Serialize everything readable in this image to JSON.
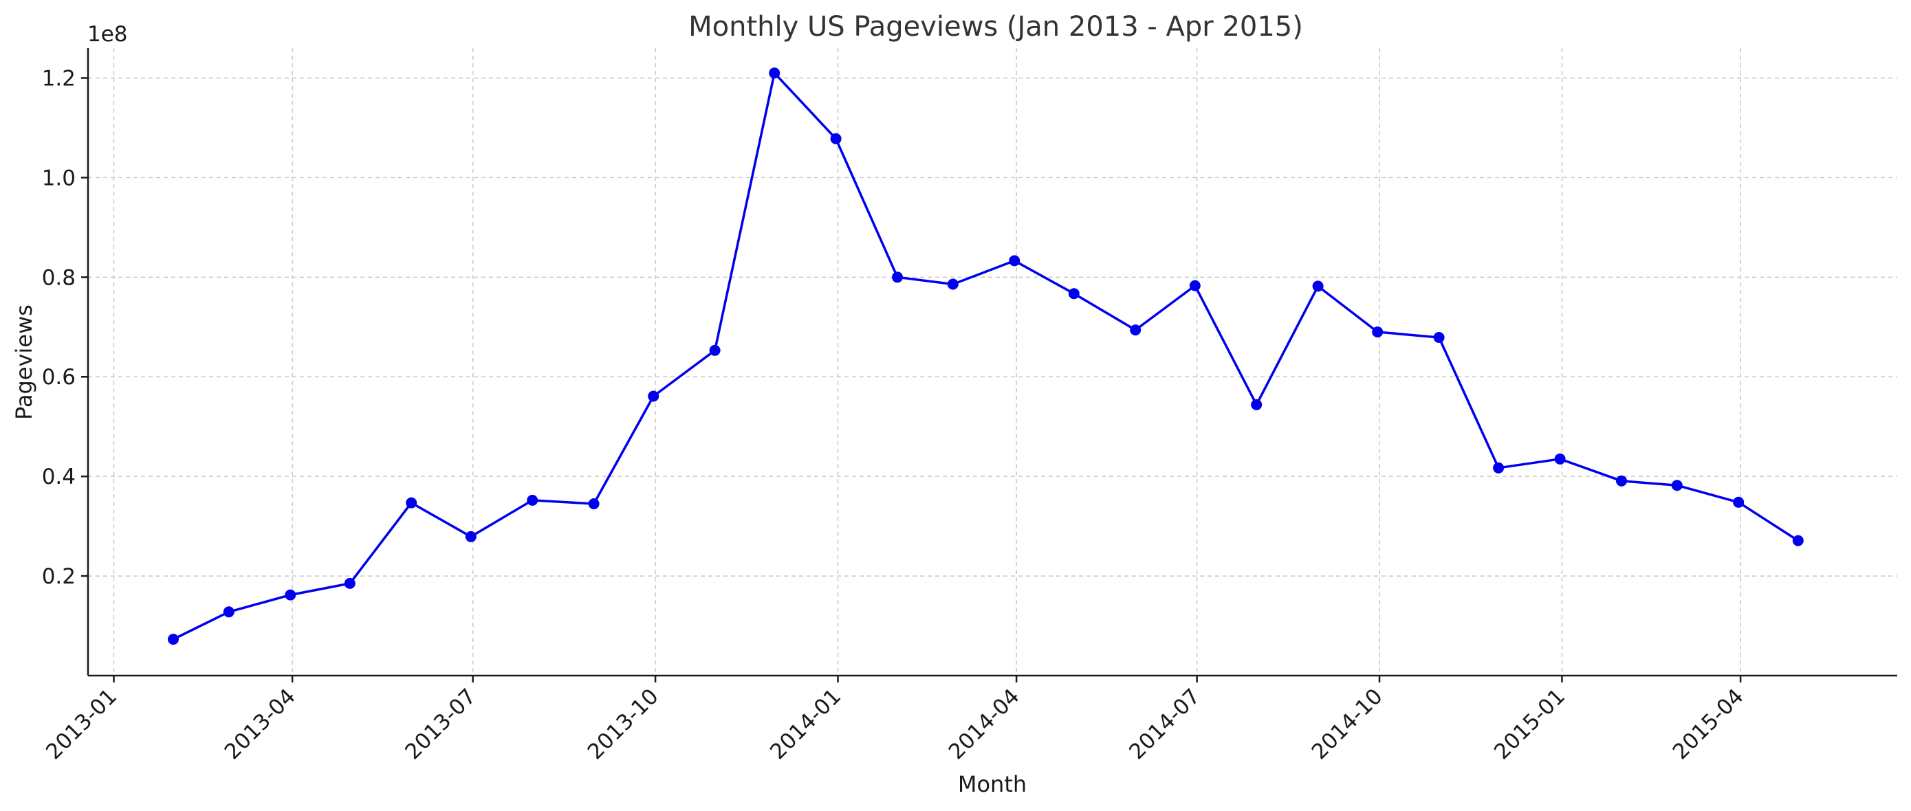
{
  "chart_data": {
    "type": "line",
    "title": "Monthly US Pageviews (Jan 2013 - Apr 2015)",
    "xlabel": "Month",
    "ylabel": "Pageviews",
    "y_offset_label": "1e8",
    "y_scale": 100000000,
    "x_range": [
      "2012-12-19",
      "2015-06-19"
    ],
    "y_range": [
      0,
      126000000
    ],
    "y_ticks": [
      {
        "value": 20000000,
        "label": "0.2"
      },
      {
        "value": 40000000,
        "label": "0.4"
      },
      {
        "value": 60000000,
        "label": "0.6"
      },
      {
        "value": 80000000,
        "label": "0.8"
      },
      {
        "value": 100000000,
        "label": "1.0"
      },
      {
        "value": 120000000,
        "label": "1.2"
      }
    ],
    "x_ticks": [
      {
        "value": "2013-01-01",
        "label": "2013-01"
      },
      {
        "value": "2013-04-01",
        "label": "2013-04"
      },
      {
        "value": "2013-07-01",
        "label": "2013-07"
      },
      {
        "value": "2013-10-01",
        "label": "2013-10"
      },
      {
        "value": "2014-01-01",
        "label": "2014-01"
      },
      {
        "value": "2014-04-01",
        "label": "2014-04"
      },
      {
        "value": "2014-07-01",
        "label": "2014-07"
      },
      {
        "value": "2014-10-01",
        "label": "2014-10"
      },
      {
        "value": "2015-01-01",
        "label": "2015-01"
      },
      {
        "value": "2015-04-01",
        "label": "2015-04"
      }
    ],
    "grid": true,
    "legend": "none",
    "series": [
      {
        "color": "#0000ee",
        "marker": "circle",
        "x": [
          "2013-01-31",
          "2013-02-28",
          "2013-03-31",
          "2013-04-30",
          "2013-05-31",
          "2013-06-30",
          "2013-07-31",
          "2013-08-31",
          "2013-09-30",
          "2013-10-31",
          "2013-11-30",
          "2013-12-31",
          "2014-01-31",
          "2014-02-28",
          "2014-03-31",
          "2014-04-30",
          "2014-05-31",
          "2014-06-30",
          "2014-07-31",
          "2014-08-31",
          "2014-09-30",
          "2014-10-31",
          "2014-11-30",
          "2014-12-31",
          "2015-01-31",
          "2015-02-28",
          "2015-03-31",
          "2015-04-30"
        ],
        "values": [
          7300000,
          12800000,
          16200000,
          18500000,
          34700000,
          27900000,
          35200000,
          34500000,
          56100000,
          65300000,
          121000000,
          107800000,
          80000000,
          78600000,
          83300000,
          76700000,
          69400000,
          78300000,
          54400000,
          78200000,
          69000000,
          67900000,
          41700000,
          43500000,
          39100000,
          38200000,
          34800000,
          27100000
        ]
      }
    ]
  }
}
